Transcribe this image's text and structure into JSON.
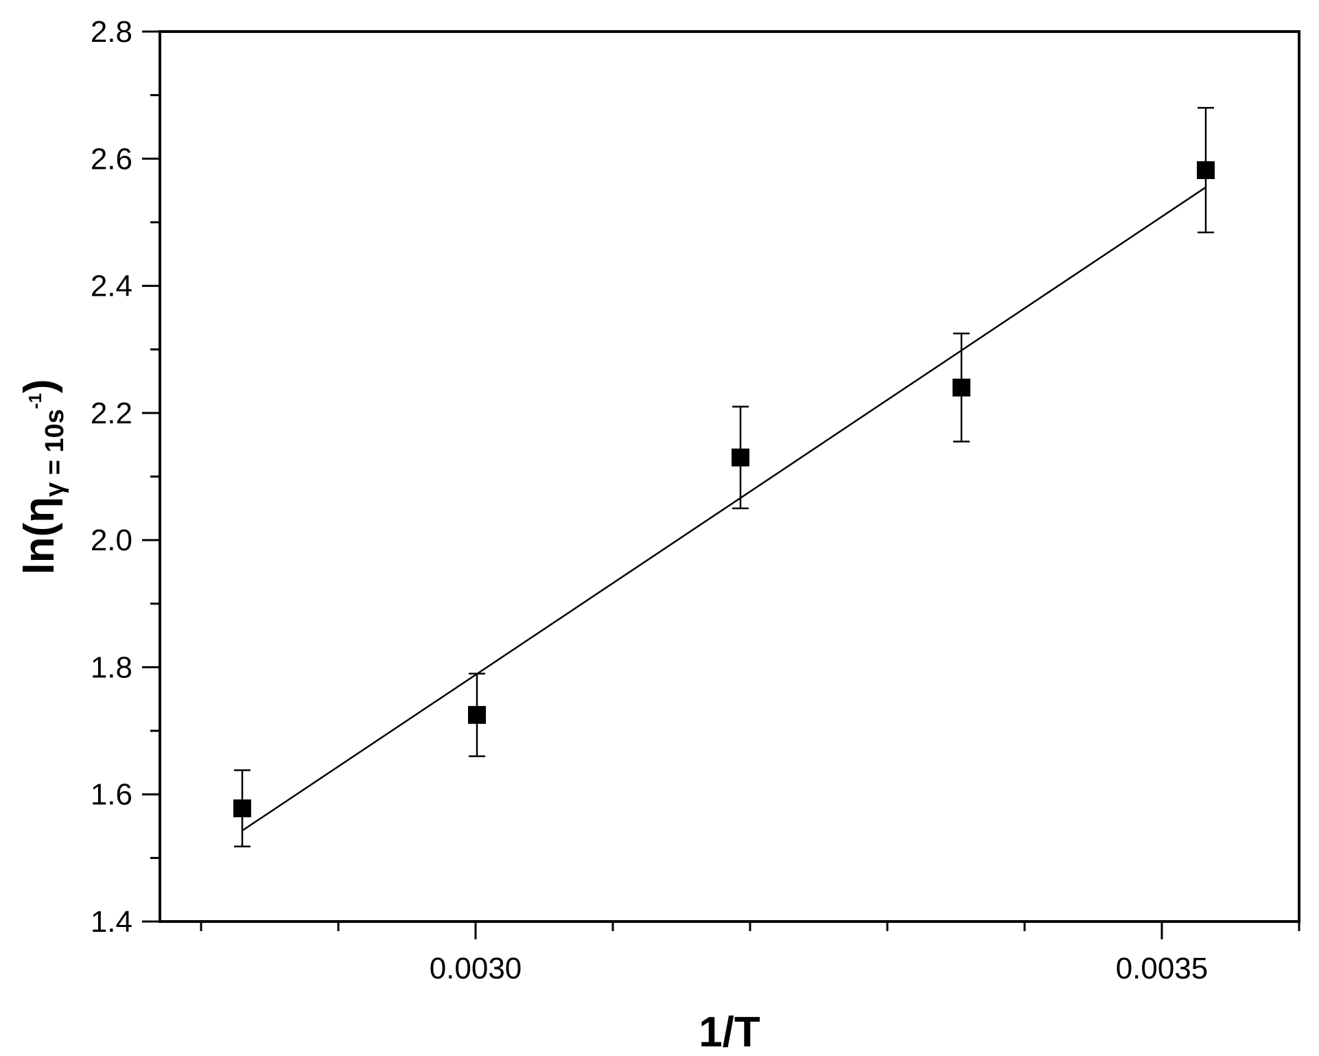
{
  "chart_data": {
    "type": "scatter",
    "xlabel": "1/T",
    "ylabel": {
      "base": "ln(η",
      "subscript": "γ = 10s",
      "superscript": "-1",
      "close": ")"
    },
    "xlim": [
      0.00277,
      0.0036
    ],
    "ylim": [
      1.4,
      2.8
    ],
    "x_ticks": [
      {
        "value": 0.003,
        "label": "0.0030"
      },
      {
        "value": 0.0035,
        "label": "0.0035"
      }
    ],
    "x_minor_ticks": [
      0.0028,
      0.0029,
      0.0031,
      0.0032,
      0.0033,
      0.0034,
      0.0036
    ],
    "y_ticks": [
      {
        "value": 1.4,
        "label": "1.4"
      },
      {
        "value": 1.6,
        "label": "1.6"
      },
      {
        "value": 1.8,
        "label": "1.8"
      },
      {
        "value": 2.0,
        "label": "2.0"
      },
      {
        "value": 2.2,
        "label": "2.2"
      },
      {
        "value": 2.4,
        "label": "2.4"
      },
      {
        "value": 2.6,
        "label": "2.6"
      },
      {
        "value": 2.8,
        "label": "2.8"
      }
    ],
    "y_minor_ticks": [
      1.5,
      1.7,
      1.9,
      2.1,
      2.3,
      2.5,
      2.7
    ],
    "grid": false,
    "series": [
      {
        "marker": "square",
        "color": "#000000",
        "points": [
          {
            "x": 0.00283,
            "y": 1.578,
            "err": 0.06
          },
          {
            "x": 0.003001,
            "y": 1.725,
            "err": 0.065
          },
          {
            "x": 0.003193,
            "y": 2.13,
            "err": 0.08
          },
          {
            "x": 0.003354,
            "y": 2.24,
            "err": 0.085
          },
          {
            "x": 0.003532,
            "y": 2.582,
            "err": 0.098
          }
        ]
      }
    ],
    "fit_line": {
      "color": "#000000",
      "x": [
        0.00283,
        0.003532
      ],
      "y": [
        1.543,
        2.555
      ]
    }
  }
}
